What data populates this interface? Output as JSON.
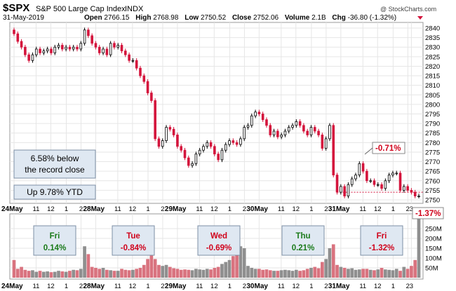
{
  "header": {
    "symbol": "$SPX",
    "name": "S&P 500 Large Cap Index",
    "exchange": "INDX",
    "date": "31-May-2019",
    "open_label": "Open",
    "open": "2766.15",
    "high_label": "High",
    "high": "2768.98",
    "low_label": "Low",
    "low": "2750.52",
    "close_label": "Close",
    "close": "2752.06",
    "volume_label": "Volume",
    "volume": "2.1B",
    "chg_label": "Chg",
    "chg": "-36.80 (-1.32%)",
    "copyright": "@ StockCharts.com"
  },
  "colors": {
    "up": "#000000",
    "down": "#d4143c",
    "vol_up": "#8f8f8f",
    "vol_down": "#d9737f",
    "dashed": "#d4143c"
  },
  "chart_data": {
    "type": "candlestick",
    "y_axis": {
      "min": 2750,
      "max": 2840,
      "ticks": [
        "2840",
        "2835",
        "2830",
        "2825",
        "2820",
        "2815",
        "2810",
        "2805",
        "2800",
        "2795",
        "2790",
        "2785",
        "2780",
        "2775",
        "2770",
        "2765",
        "2760",
        "2755",
        "2750"
      ]
    },
    "volume_axis": {
      "ticks": [
        "250M",
        "200M",
        "150M",
        "100M",
        "50M"
      ]
    },
    "x_labels": [
      "24May",
      "11",
      "12",
      "1",
      "2",
      "28May",
      "11",
      "12",
      "1",
      "2",
      "29May",
      "11",
      "12",
      "1",
      "2",
      "30May",
      "11",
      "12",
      "1",
      "2",
      "31May",
      "11",
      "12",
      "1",
      "2",
      "3"
    ],
    "day_labels": [
      "24May",
      "28May",
      "29May",
      "30May",
      "31May"
    ],
    "closes": [
      2837,
      2833,
      2830,
      2826,
      2823,
      2826,
      2829,
      2827,
      2828,
      2829,
      2827,
      2830,
      2831,
      2829,
      2830,
      2829,
      2830,
      2829,
      2832,
      2839,
      2836,
      2832,
      2830,
      2827,
      2829,
      2826,
      2832,
      2830,
      2831,
      2828,
      2826,
      2823,
      2823,
      2819,
      2815,
      2812,
      2806,
      2802,
      2782,
      2778,
      2781,
      2788,
      2787,
      2784,
      2778,
      2776,
      2772,
      2768,
      2769,
      2774,
      2776,
      2778,
      2780,
      2778,
      2774,
      2771,
      2776,
      2779,
      2781,
      2780,
      2779,
      2782,
      2788,
      2789,
      2794,
      2796,
      2795,
      2792,
      2789,
      2784,
      2786,
      2783,
      2784,
      2786,
      2788,
      2789,
      2791,
      2789,
      2786,
      2784,
      2788,
      2786,
      2784,
      2777,
      2782,
      2789,
      2763,
      2754,
      2757,
      2752,
      2758,
      2761,
      2763,
      2769,
      2765,
      2760,
      2760,
      2758,
      2758,
      2756,
      2760,
      2763,
      2764,
      2764,
      2755,
      2757,
      2755,
      2754,
      2752,
      2752
    ],
    "volume": [
      90,
      45,
      55,
      40,
      35,
      38,
      30,
      35,
      30,
      32,
      28,
      30,
      35,
      32,
      30,
      35,
      40,
      38,
      45,
      160,
      120,
      55,
      50,
      45,
      50,
      40,
      38,
      35,
      35,
      45,
      40,
      38,
      40,
      45,
      50,
      65,
      95,
      260,
      95,
      65,
      60,
      65,
      55,
      48,
      45,
      40,
      42,
      40,
      38,
      45,
      42,
      40,
      45,
      42,
      50,
      55,
      70,
      80,
      90,
      110,
      260,
      160,
      150,
      60,
      50,
      45,
      45,
      40,
      42,
      38,
      35,
      35,
      38,
      40,
      38,
      35,
      40,
      35,
      38,
      45,
      50,
      55,
      48,
      80,
      95,
      150,
      170,
      65,
      55,
      50,
      45,
      48,
      40,
      42,
      45,
      45,
      40,
      38,
      42,
      50,
      42,
      40,
      38,
      45,
      35,
      55,
      45,
      60,
      90,
      300
    ],
    "annotations": {
      "last_price_change": "-0.71%",
      "last_change": "-1.37%",
      "record_note_line1": "6.58% below",
      "record_note_line2": "the record close",
      "ytd_note": "Up 9.78% YTD"
    },
    "daily_changes": [
      {
        "day": "Fri",
        "pct": "0.14%",
        "dir": "up"
      },
      {
        "day": "Tue",
        "pct": "-0.84%",
        "dir": "down"
      },
      {
        "day": "Wed",
        "pct": "-0.69%",
        "dir": "down"
      },
      {
        "day": "Thu",
        "pct": "0.21%",
        "dir": "up"
      },
      {
        "day": "Fri",
        "pct": "-1.32%",
        "dir": "down"
      }
    ]
  }
}
